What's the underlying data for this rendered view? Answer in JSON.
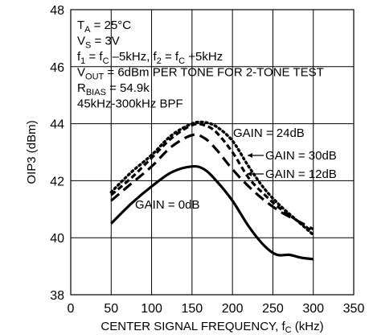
{
  "chart_data": {
    "type": "line",
    "title": "",
    "xlabel": "CENTER SIGNAL FREQUENCY, f",
    "xlabel_sub": "C",
    "xlabel_unit": " (kHz)",
    "ylabel": "OIP3 (dBm)",
    "xlim": [
      0,
      350
    ],
    "ylim": [
      38,
      48
    ],
    "xticks": [
      0,
      50,
      100,
      150,
      200,
      250,
      300,
      350
    ],
    "yticks": [
      38,
      40,
      42,
      44,
      46,
      48
    ],
    "grid": true,
    "conditions": [
      [
        {
          "t": "T"
        },
        {
          "t": "A",
          "sub": true
        },
        {
          "t": " = 25°C"
        }
      ],
      [
        {
          "t": "V"
        },
        {
          "t": "S",
          "sub": true
        },
        {
          "t": " = 3V"
        }
      ],
      [
        {
          "t": "f"
        },
        {
          "t": "1",
          "sub": true
        },
        {
          "t": " = f"
        },
        {
          "t": "C",
          "sub": true
        },
        {
          "t": " –5kHz, f"
        },
        {
          "t": "2",
          "sub": true
        },
        {
          "t": " = f"
        },
        {
          "t": "C",
          "sub": true
        },
        {
          "t": " +5kHz"
        }
      ],
      [
        {
          "t": "V"
        },
        {
          "t": "OUT",
          "sub": true
        },
        {
          "t": " = 6dBm PER TONE FOR 2-TONE TEST"
        }
      ],
      [
        {
          "t": "R"
        },
        {
          "t": "BIAS",
          "sub": true
        },
        {
          "t": " = 54.9k"
        }
      ],
      [
        {
          "t": "45kHz-300kHz BPF"
        }
      ]
    ],
    "series": [
      {
        "name": "GAIN = 0dB",
        "style": "solid",
        "x": [
          50,
          75,
          100,
          125,
          150,
          165,
          180,
          200,
          220,
          240,
          255,
          270,
          285,
          300
        ],
        "y": [
          40.5,
          41.2,
          41.8,
          42.3,
          42.5,
          42.4,
          42.0,
          41.3,
          40.4,
          39.7,
          39.4,
          39.4,
          39.3,
          39.25
        ]
      },
      {
        "name": "GAIN = 12dB",
        "style": "dashed",
        "x": [
          50,
          75,
          100,
          125,
          150,
          165,
          180,
          200,
          220,
          240,
          260,
          280,
          300
        ],
        "y": [
          41.3,
          41.9,
          42.5,
          43.2,
          43.6,
          43.5,
          43.1,
          42.4,
          41.8,
          41.3,
          40.9,
          40.6,
          40.3
        ]
      },
      {
        "name": "GAIN = 24dB",
        "style": "dotted",
        "x": [
          50,
          75,
          100,
          125,
          150,
          165,
          180,
          200,
          220,
          240,
          260,
          280,
          300
        ],
        "y": [
          41.6,
          42.3,
          42.9,
          43.6,
          44.0,
          44.05,
          43.9,
          43.4,
          42.5,
          41.7,
          41.1,
          40.6,
          40.1
        ]
      },
      {
        "name": "GAIN = 30dB",
        "style": "shortdash",
        "x": [
          50,
          75,
          100,
          125,
          150,
          165,
          180,
          200,
          220,
          240,
          260,
          280,
          300
        ],
        "y": [
          41.5,
          42.1,
          42.8,
          43.5,
          43.95,
          43.95,
          43.7,
          43.0,
          42.1,
          41.5,
          41.0,
          40.6,
          40.2
        ]
      }
    ]
  }
}
